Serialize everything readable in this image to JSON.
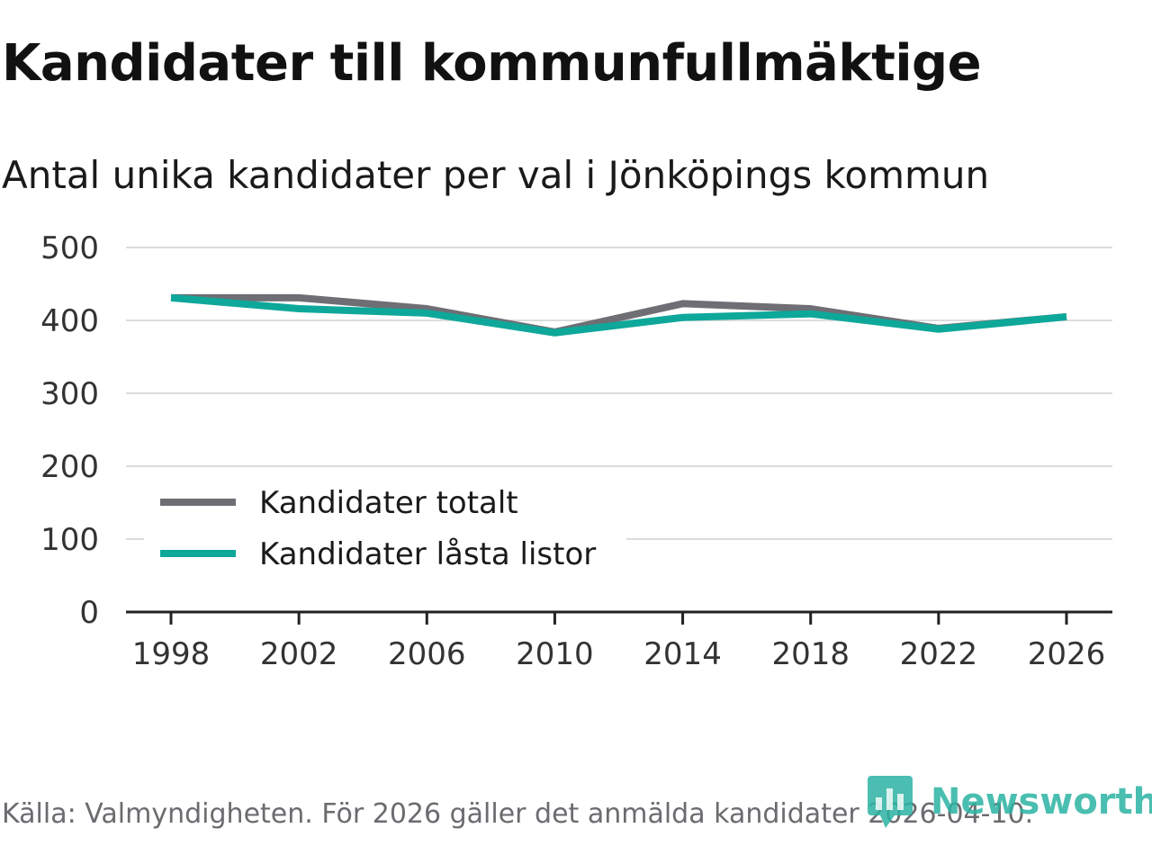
{
  "title": "Kandidater till kommunfullmäktige",
  "subtitle": "Antal unika kandidater per val i Jönköpings kommun",
  "source": "Källa: Valmyndigheten. För 2026 gäller det anmälda kandidater 2026-04-10.",
  "brand": {
    "name": "Newsworthy",
    "color": "#2bb3a3"
  },
  "chart_data": {
    "type": "line",
    "title": "Kandidater till kommunfullmäktige",
    "subtitle": "Antal unika kandidater per val i Jönköpings kommun",
    "xlabel": "",
    "ylabel": "",
    "x": [
      "1998",
      "2002",
      "2006",
      "2010",
      "2014",
      "2018",
      "2022",
      "2026"
    ],
    "ylim": [
      0,
      500
    ],
    "yticks": [
      "0",
      "100",
      "200",
      "300",
      "400",
      "500"
    ],
    "grid": true,
    "legend_position": "bottom-left",
    "series": [
      {
        "name": "Kandidater totalt",
        "color": "#6e6e74",
        "values": [
          431,
          431,
          416,
          384,
          423,
          416,
          389,
          405
        ]
      },
      {
        "name": "Kandidater låsta listor",
        "color": "#0ea89a",
        "values": [
          431,
          416,
          410,
          383,
          404,
          409,
          388,
          405
        ]
      }
    ]
  }
}
